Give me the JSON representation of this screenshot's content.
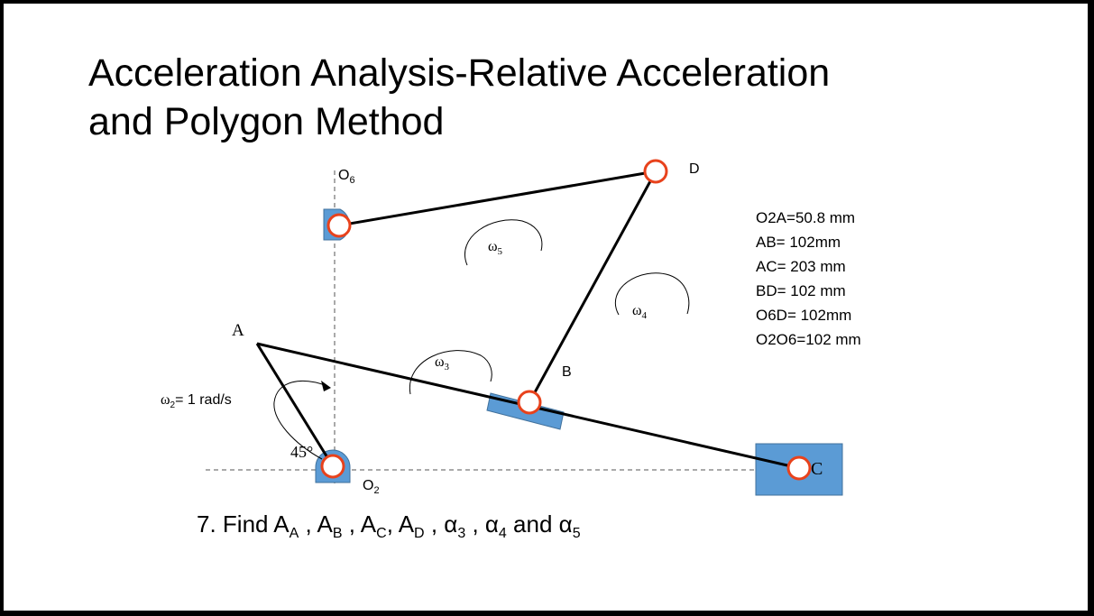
{
  "slide": {
    "title_line1": "Acceleration Analysis-Relative Acceleration",
    "title_line2": "and Polygon Method"
  },
  "specs": [
    "O2A=50.8 mm",
    "AB= 102mm",
    "AC= 203 mm",
    "BD= 102 mm",
    "O6D= 102mm",
    "O2O6=102 mm"
  ],
  "labels": {
    "O6": "O",
    "O6_sub": "6",
    "O2": "O",
    "O2_sub": "2",
    "A": "A",
    "B": "B",
    "C": "C",
    "D": "D",
    "angle": "45",
    "degree": "°",
    "omega2_sym": "ω",
    "omega2_sub": "2",
    "omega2_value": "= 1 rad/s",
    "omega3_sym": "ω",
    "omega3_sub": "3",
    "omega4_sym": "ω",
    "omega4_sub": "4",
    "omega5_sym": "ω",
    "omega5_sub": "5"
  },
  "task": {
    "prefix": "7. Find A",
    "sub_A": "A",
    "sep1": " , A",
    "sub_B": "B",
    "sep2": " , A",
    "sub_C": "C",
    "sep3": ", A",
    "sub_D": "D",
    "sep4": " , α",
    "sub_3": "3",
    "sep5": " , α",
    "sub_4": "4",
    "sep6": " and α",
    "sub_5": "5"
  },
  "colors": {
    "block_fill": "#5b9bd5",
    "block_stroke": "#41719c",
    "joint_stroke": "#e8421c",
    "link": "#000000"
  }
}
